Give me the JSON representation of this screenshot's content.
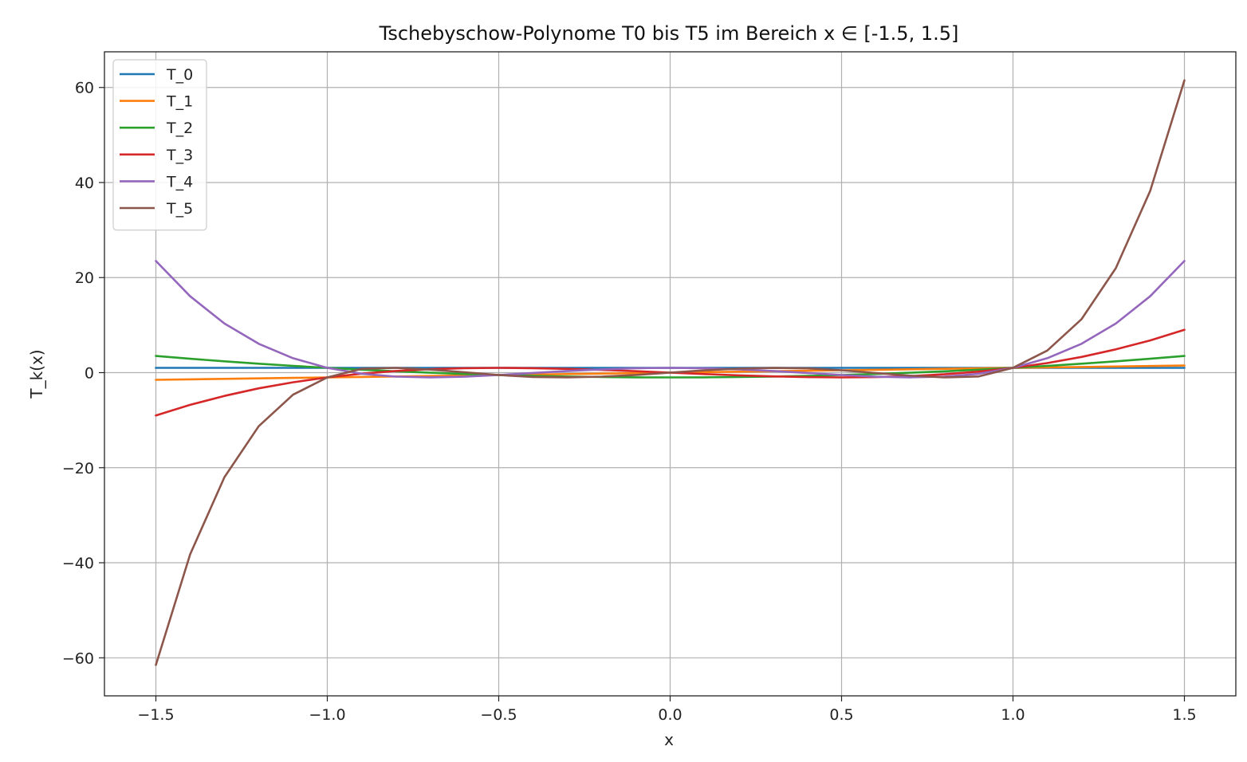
{
  "chart_data": {
    "type": "line",
    "title": "Tschebyschow-Polynome T0 bis T5 im Bereich x ∈ [-1.5, 1.5]",
    "xlabel": "x",
    "ylabel": "T_k(x)",
    "xlim": [
      -1.65,
      1.65
    ],
    "ylim": [
      -68,
      67.5
    ],
    "xticks": [
      -1.5,
      -1.0,
      -0.5,
      0.0,
      0.5,
      1.0,
      1.5
    ],
    "xtick_labels": [
      "−1.5",
      "−1.0",
      "−0.5",
      "0.0",
      "0.5",
      "1.0",
      "1.5"
    ],
    "yticks": [
      -60,
      -40,
      -20,
      0,
      20,
      40,
      60
    ],
    "ytick_labels": [
      "−60",
      "−40",
      "−20",
      "0",
      "20",
      "40",
      "60"
    ],
    "grid": true,
    "legend_position": "top-left",
    "x": [
      -1.5,
      -1.4,
      -1.3,
      -1.2,
      -1.1,
      -1.0,
      -0.9,
      -0.8,
      -0.7,
      -0.6,
      -0.5,
      -0.4,
      -0.3,
      -0.2,
      -0.1,
      0.0,
      0.1,
      0.2,
      0.3,
      0.4,
      0.5,
      0.6,
      0.7,
      0.8,
      0.9,
      1.0,
      1.1,
      1.2,
      1.3,
      1.4,
      1.5
    ],
    "series": [
      {
        "name": "T_0",
        "color": "#1f77b4",
        "values": [
          1,
          1,
          1,
          1,
          1,
          1,
          1,
          1,
          1,
          1,
          1,
          1,
          1,
          1,
          1,
          1,
          1,
          1,
          1,
          1,
          1,
          1,
          1,
          1,
          1,
          1,
          1,
          1,
          1,
          1,
          1
        ]
      },
      {
        "name": "T_1",
        "color": "#ff7f0e",
        "values": [
          -1.5,
          -1.4,
          -1.3,
          -1.2,
          -1.1,
          -1.0,
          -0.9,
          -0.8,
          -0.7,
          -0.6,
          -0.5,
          -0.4,
          -0.3,
          -0.2,
          -0.1,
          0.0,
          0.1,
          0.2,
          0.3,
          0.4,
          0.5,
          0.6,
          0.7,
          0.8,
          0.9,
          1.0,
          1.1,
          1.2,
          1.3,
          1.4,
          1.5
        ]
      },
      {
        "name": "T_2",
        "color": "#2ca02c",
        "values": [
          3.5,
          2.92,
          2.38,
          1.88,
          1.42,
          1.0,
          0.62,
          0.28,
          -0.02,
          -0.28,
          -0.5,
          -0.68,
          -0.82,
          -0.92,
          -0.98,
          -1.0,
          -0.98,
          -0.92,
          -0.82,
          -0.68,
          -0.5,
          -0.28,
          -0.02,
          0.28,
          0.62,
          1.0,
          1.42,
          1.88,
          2.38,
          2.92,
          3.5
        ]
      },
      {
        "name": "T_3",
        "color": "#d62728",
        "values": [
          -9.0,
          -6.78,
          -4.89,
          -3.31,
          -2.02,
          -1.0,
          -0.22,
          0.35,
          0.73,
          0.94,
          1.0,
          0.94,
          0.79,
          0.57,
          0.3,
          0.0,
          -0.3,
          -0.57,
          -0.79,
          -0.94,
          -1.0,
          -0.94,
          -0.73,
          -0.35,
          0.22,
          1.0,
          2.02,
          3.31,
          4.89,
          6.78,
          9.0
        ]
      },
      {
        "name": "T_4",
        "color": "#9467bd",
        "values": [
          23.5,
          16.07,
          10.34,
          6.07,
          3.03,
          1.0,
          -0.23,
          -0.84,
          -0.99,
          -0.85,
          -0.5,
          -0.07,
          0.35,
          0.69,
          0.92,
          1.0,
          0.92,
          0.69,
          0.35,
          -0.07,
          -0.5,
          -0.85,
          -0.99,
          -0.84,
          -0.23,
          1.0,
          3.03,
          6.07,
          10.34,
          16.07,
          23.5
        ]
      },
      {
        "name": "T_5",
        "color": "#8c564b",
        "values": [
          -61.5,
          -38.21,
          -21.99,
          -11.26,
          -4.65,
          -1.0,
          0.81,
          1.0,
          0.64,
          0.08,
          -0.5,
          -0.9,
          -0.99,
          -0.84,
          -0.48,
          0.0,
          0.48,
          0.84,
          0.99,
          0.9,
          0.5,
          -0.08,
          -0.64,
          -1.0,
          -0.81,
          1.0,
          4.65,
          11.26,
          21.99,
          38.21,
          61.5
        ]
      }
    ]
  }
}
